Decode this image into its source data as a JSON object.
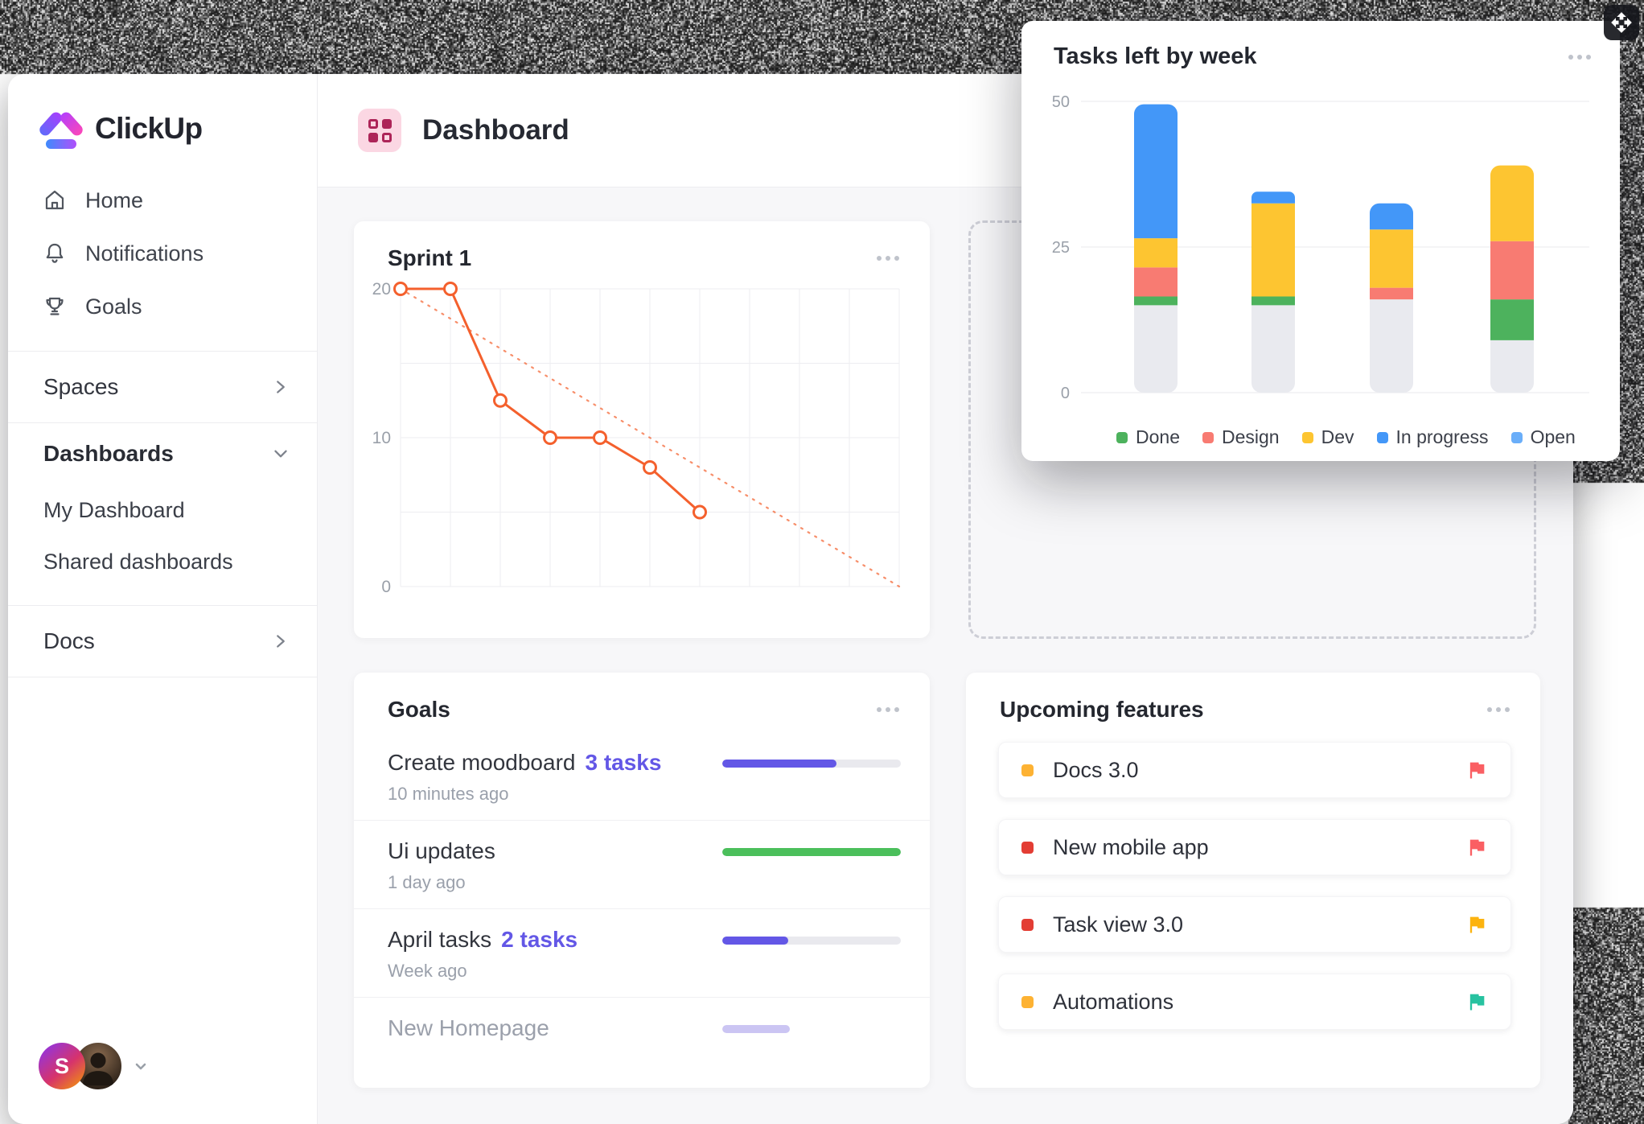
{
  "brand": {
    "name": "ClickUp"
  },
  "sidebar": {
    "home": "Home",
    "notifications": "Notifications",
    "goals": "Goals",
    "spaces": "Spaces",
    "dashboards": "Dashboards",
    "my_dashboard": "My Dashboard",
    "shared_dashboards": "Shared dashboards",
    "docs": "Docs",
    "avatar_initial": "S"
  },
  "header": {
    "title": "Dashboard"
  },
  "cards": {
    "sprint": {
      "title": "Sprint 1"
    },
    "tasks": {
      "title": "Tasks left by week"
    },
    "goals": {
      "title": "Goals"
    },
    "upcoming": {
      "title": "Upcoming features"
    }
  },
  "goals_list": [
    {
      "title": "Create moodboard",
      "tasks_label": "3 tasks",
      "time": "10 minutes ago",
      "progress": 64,
      "color": "#6357e6",
      "muted": false
    },
    {
      "title": "Ui updates",
      "tasks_label": "",
      "time": "1 day ago",
      "progress": 100,
      "color": "#4bbf5b",
      "muted": false
    },
    {
      "title": "April tasks",
      "tasks_label": "2 tasks",
      "time": "Week ago",
      "progress": 37,
      "color": "#6357e6",
      "muted": false
    },
    {
      "title": "New Homepage",
      "tasks_label": "",
      "time": "",
      "progress": 38,
      "color": "#cbc5f3",
      "muted": true
    }
  ],
  "upcoming_list": [
    {
      "label": "Docs 3.0",
      "bullet_color": "#fdb233",
      "flag_color": "#fa5f63"
    },
    {
      "label": "New mobile app",
      "bullet_color": "#e33d34",
      "flag_color": "#fa5f63"
    },
    {
      "label": "Task view 3.0",
      "bullet_color": "#e33d34",
      "flag_color": "#fcb30f"
    },
    {
      "label": "Automations",
      "bullet_color": "#fdb233",
      "flag_color": "#27c2a0"
    }
  ],
  "chart_data": [
    {
      "id": "sprint-burndown",
      "type": "line",
      "title": "Sprint 1",
      "x": [
        0,
        1,
        2,
        3,
        4,
        5,
        6
      ],
      "values": [
        20,
        20,
        12.5,
        10,
        10,
        8,
        5
      ],
      "x_max": 10,
      "ylim": [
        0,
        20
      ],
      "yticks": [
        20,
        10,
        0
      ],
      "ygrid": [
        20,
        15,
        10,
        5,
        0
      ],
      "xgrid_divisions": 10,
      "ideal_line": {
        "x": [
          0,
          10
        ],
        "y": [
          20,
          0
        ],
        "style": "dotted"
      },
      "line_color": "#f4602d",
      "marker": "open-circle",
      "grid": true
    },
    {
      "id": "tasks-left-by-week",
      "type": "stacked-bar",
      "title": "Tasks left by week",
      "bars": 4,
      "ylim": [
        0,
        50
      ],
      "yticks": [
        50,
        25,
        0
      ],
      "stack_order_bottom_to_top": [
        "Open",
        "Done",
        "Design",
        "Dev",
        "In progress"
      ],
      "series": [
        {
          "name": "Open",
          "color": "#e9eaef",
          "values": [
            15,
            15,
            16,
            9
          ]
        },
        {
          "name": "Done",
          "color": "#4db25d",
          "values": [
            1.5,
            1.5,
            0,
            7
          ]
        },
        {
          "name": "Design",
          "color": "#f87b72",
          "values": [
            5,
            0,
            2,
            10
          ]
        },
        {
          "name": "Dev",
          "color": "#fdc531",
          "values": [
            5,
            16,
            10,
            13
          ]
        },
        {
          "name": "In progress",
          "color": "#4397f8",
          "values": [
            23,
            2,
            4.5,
            0
          ]
        }
      ],
      "legend": [
        {
          "label": "Done",
          "color": "#4db25d"
        },
        {
          "label": "Design",
          "color": "#f87b72"
        },
        {
          "label": "Dev",
          "color": "#fdc531"
        },
        {
          "label": "In progress",
          "color": "#4397f8"
        },
        {
          "label": "Open",
          "color": "#6aaef9"
        }
      ],
      "legend_position": "bottom",
      "grid": true
    }
  ],
  "colors": {
    "accent_orange": "#f4602d",
    "goal_purple": "#6357e6",
    "goal_green": "#4bbf5b",
    "content_bg": "#f7f7f9",
    "header_icon_bg": "#fbd7e3",
    "header_icon_fg": "#ad2458"
  },
  "icons": {
    "sidebar": [
      "home-icon",
      "bell-icon",
      "trophy-icon"
    ],
    "chevrons": [
      "chevron-right-icon",
      "chevron-down-icon"
    ],
    "card_menu": "ellipsis-icon",
    "feature_flag": "flag-icon",
    "drag_handle": "move-icon"
  }
}
